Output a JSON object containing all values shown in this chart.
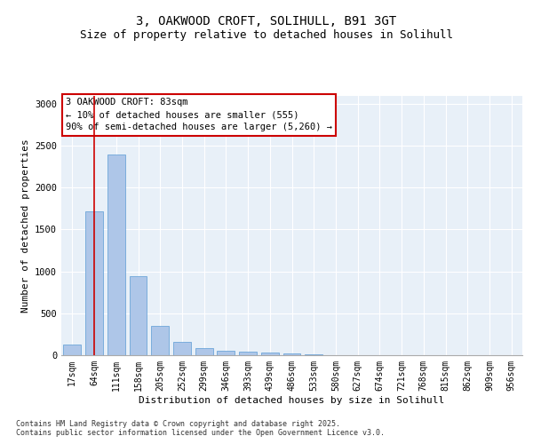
{
  "title_line1": "3, OAKWOOD CROFT, SOLIHULL, B91 3GT",
  "title_line2": "Size of property relative to detached houses in Solihull",
  "xlabel": "Distribution of detached houses by size in Solihull",
  "ylabel": "Number of detached properties",
  "categories": [
    "17sqm",
    "64sqm",
    "111sqm",
    "158sqm",
    "205sqm",
    "252sqm",
    "299sqm",
    "346sqm",
    "393sqm",
    "439sqm",
    "486sqm",
    "533sqm",
    "580sqm",
    "627sqm",
    "674sqm",
    "721sqm",
    "768sqm",
    "815sqm",
    "862sqm",
    "909sqm",
    "956sqm"
  ],
  "values": [
    130,
    1720,
    2390,
    940,
    345,
    160,
    85,
    52,
    46,
    30,
    20,
    8,
    5,
    3,
    2,
    1,
    1,
    0,
    0,
    0,
    0
  ],
  "bar_color": "#aec6e8",
  "bar_edge_color": "#5b9bd5",
  "vline_x": 1,
  "vline_color": "#cc0000",
  "annotation_text": "3 OAKWOOD CROFT: 83sqm\n← 10% of detached houses are smaller (555)\n90% of semi-detached houses are larger (5,260) →",
  "annotation_box_color": "#cc0000",
  "annotation_box_facecolor": "white",
  "ylim": [
    0,
    3100
  ],
  "yticks": [
    0,
    500,
    1000,
    1500,
    2000,
    2500,
    3000
  ],
  "background_color": "#e8f0f8",
  "grid_color": "white",
  "footer_text": "Contains HM Land Registry data © Crown copyright and database right 2025.\nContains public sector information licensed under the Open Government Licence v3.0.",
  "title_fontsize": 10,
  "subtitle_fontsize": 9,
  "axis_label_fontsize": 8,
  "tick_fontsize": 7,
  "annotation_fontsize": 7.5
}
